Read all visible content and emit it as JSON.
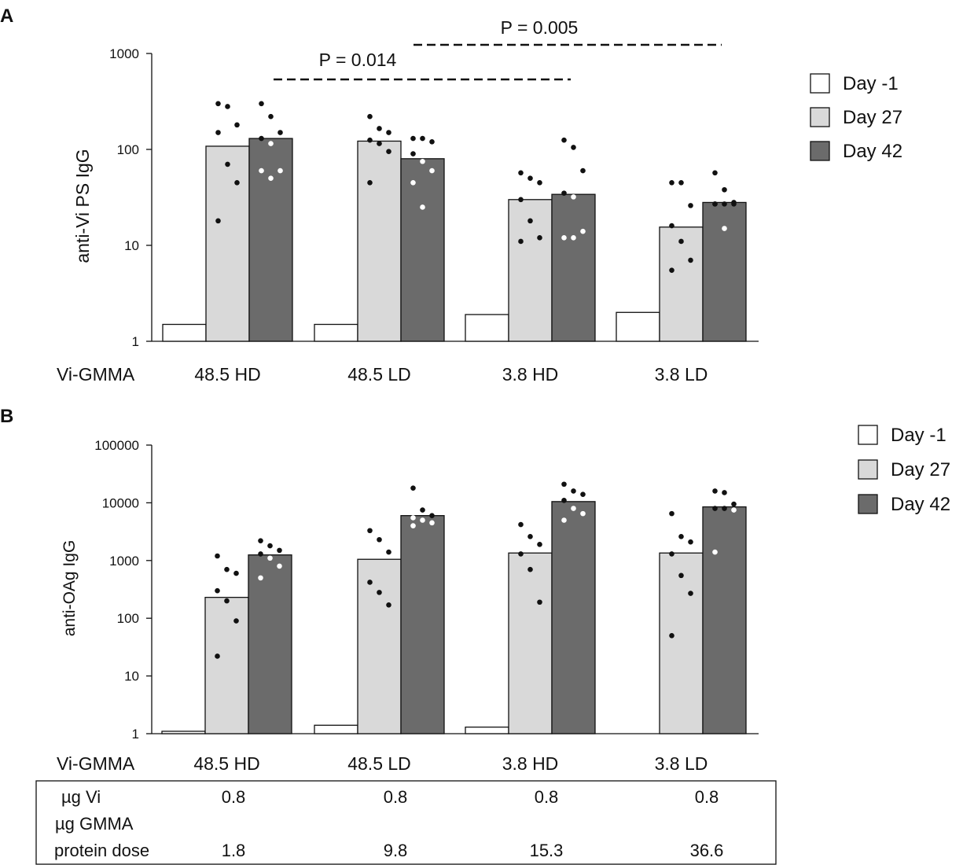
{
  "chart_data": [
    {
      "type": "bar",
      "panel_label": "A",
      "ylabel": "anti-Vi PS IgG",
      "yscale": "log",
      "ylim": [
        1,
        1000
      ],
      "yticks": [
        1,
        10,
        100,
        1000
      ],
      "ytick_labels": [
        "1",
        "10",
        "100",
        "1000"
      ],
      "xlabel": "Vi-GMMA",
      "categories": [
        "48.5 HD",
        "48.5 LD",
        "3.8 HD",
        "3.8 LD"
      ],
      "series": [
        {
          "name": "Day -1",
          "color": "#ffffff",
          "values": [
            1.5,
            1.5,
            1.9,
            2.0
          ]
        },
        {
          "name": "Day 27",
          "color": "#d9d9d9",
          "values": [
            108,
            122,
            30,
            15.5
          ],
          "points": [
            [
              300,
              280,
              180,
              150,
              70,
              45,
              18
            ],
            [
              220,
              165,
              150,
              125,
              115,
              95,
              45
            ],
            [
              57,
              50,
              45,
              30,
              18,
              12,
              11
            ],
            [
              45,
              45,
              26,
              16,
              11,
              7,
              5.5
            ]
          ]
        },
        {
          "name": "Day 42",
          "color": "#6b6b6b",
          "values": [
            130,
            80,
            34,
            28
          ],
          "points": [
            [
              300,
              220,
              150,
              130,
              115,
              60,
              60,
              50
            ],
            [
              130,
              130,
              120,
              90,
              75,
              60,
              45,
              25
            ],
            [
              125,
              105,
              60,
              35,
              32,
              14,
              12,
              12
            ],
            [
              57,
              38,
              28,
              27,
              27,
              27,
              27,
              15
            ]
          ]
        }
      ],
      "annotations": [
        {
          "text": "P = 0.014",
          "from": "48.5 HD",
          "to": "3.8 HD"
        },
        {
          "text": "P = 0.005",
          "from": "48.5 LD",
          "to": "3.8 LD"
        }
      ],
      "legend": {
        "position": "top-right",
        "entries": [
          "Day -1",
          "Day 27",
          "Day 42"
        ]
      }
    },
    {
      "type": "bar",
      "panel_label": "B",
      "ylabel": "anti-OAg IgG",
      "yscale": "log",
      "ylim": [
        1,
        100000
      ],
      "yticks": [
        1,
        10,
        100,
        1000,
        10000,
        100000
      ],
      "ytick_labels": [
        "1",
        "10",
        "100",
        "1000",
        "10000",
        "100000"
      ],
      "xlabel": "Vi-GMMA",
      "categories": [
        "48.5 HD",
        "48.5 LD",
        "3.8 HD",
        "3.8 LD"
      ],
      "series": [
        {
          "name": "Day -1",
          "color": "#ffffff",
          "values": [
            1.1,
            1.4,
            1.3,
            null
          ]
        },
        {
          "name": "Day 27",
          "color": "#d9d9d9",
          "values": [
            230,
            1050,
            1350,
            1350
          ],
          "points": [
            [
              1200,
              700,
              600,
              300,
              200,
              90,
              22
            ],
            [
              3300,
              2300,
              1400,
              420,
              280,
              170
            ],
            [
              4200,
              2600,
              1900,
              1300,
              700,
              190
            ],
            [
              6500,
              2600,
              2100,
              1300,
              550,
              270,
              50
            ]
          ]
        },
        {
          "name": "Day 42",
          "color": "#6b6b6b",
          "values": [
            1250,
            6000,
            10500,
            8500
          ],
          "points": [
            [
              2200,
              1800,
              1500,
              1300,
              1100,
              800,
              500
            ],
            [
              18000,
              7500,
              6000,
              5500,
              5000,
              4500,
              4000
            ],
            [
              21000,
              16000,
              14000,
              11000,
              8000,
              6500,
              5000
            ],
            [
              16000,
              15000,
              9500,
              8000,
              8000,
              7500,
              1400
            ]
          ]
        }
      ],
      "legend": {
        "position": "top-right",
        "entries": [
          "Day -1",
          "Day 27",
          "Day 42"
        ]
      }
    }
  ],
  "dose_table": {
    "rows": [
      {
        "label": "µg Vi",
        "values": [
          "0.8",
          "0.8",
          "0.8",
          "0.8"
        ]
      },
      {
        "label": "µg GMMA",
        "values": [
          "",
          "",
          "",
          ""
        ]
      },
      {
        "label": "protein dose",
        "values": [
          "1.8",
          "9.8",
          "15.3",
          "36.6"
        ]
      }
    ]
  }
}
